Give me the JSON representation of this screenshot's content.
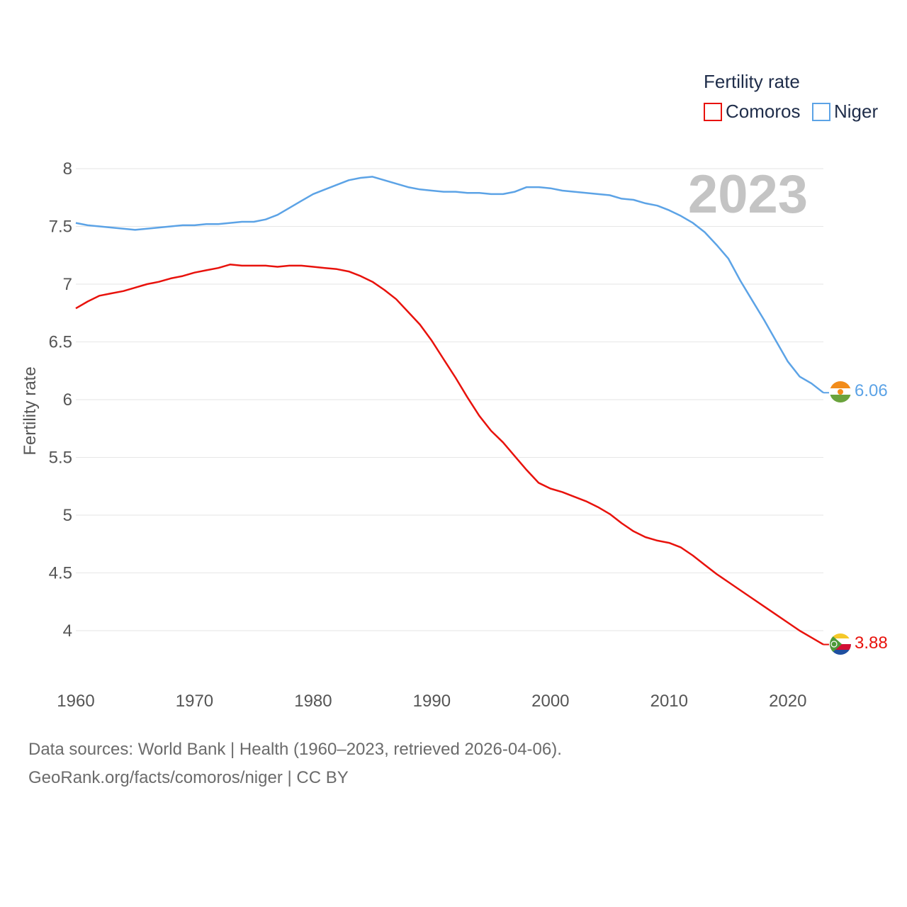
{
  "chart_data": {
    "type": "line",
    "title": "",
    "xlabel": "",
    "ylabel": "Fertility rate",
    "xlim": [
      1960,
      2023
    ],
    "ylim": [
      3.75,
      8.2
    ],
    "yticks": [
      4,
      4.5,
      5,
      5.5,
      6,
      6.5,
      7,
      7.5,
      8
    ],
    "ytick_labels": [
      "4",
      "4.5",
      "5",
      "5.5",
      "6",
      "6.5",
      "7",
      "7.5",
      "8"
    ],
    "xticks": [
      1960,
      1970,
      1980,
      1990,
      2000,
      2010,
      2020
    ],
    "xtick_labels": [
      "1960",
      "1970",
      "1980",
      "1990",
      "2000",
      "2010",
      "2020"
    ],
    "grid": true,
    "year_label": "2023",
    "legend": {
      "title": "Fertility rate",
      "position": "top-right",
      "entries": [
        "Comoros",
        "Niger"
      ]
    },
    "x": [
      1960,
      1961,
      1962,
      1963,
      1964,
      1965,
      1966,
      1967,
      1968,
      1969,
      1970,
      1971,
      1972,
      1973,
      1974,
      1975,
      1976,
      1977,
      1978,
      1979,
      1980,
      1981,
      1982,
      1983,
      1984,
      1985,
      1986,
      1987,
      1988,
      1989,
      1990,
      1991,
      1992,
      1993,
      1994,
      1995,
      1996,
      1997,
      1998,
      1999,
      2000,
      2001,
      2002,
      2003,
      2004,
      2005,
      2006,
      2007,
      2008,
      2009,
      2010,
      2011,
      2012,
      2013,
      2014,
      2015,
      2016,
      2017,
      2018,
      2019,
      2020,
      2021,
      2022,
      2023
    ],
    "series": [
      {
        "name": "Comoros",
        "color": "#e8120c",
        "end_label": "3.88",
        "values": [
          6.79,
          6.85,
          6.9,
          6.92,
          6.94,
          6.97,
          7.0,
          7.02,
          7.05,
          7.07,
          7.1,
          7.12,
          7.14,
          7.17,
          7.16,
          7.16,
          7.16,
          7.15,
          7.16,
          7.16,
          7.15,
          7.14,
          7.13,
          7.11,
          7.07,
          7.02,
          6.95,
          6.87,
          6.76,
          6.65,
          6.51,
          6.35,
          6.19,
          6.02,
          5.86,
          5.73,
          5.63,
          5.51,
          5.39,
          5.28,
          5.23,
          5.2,
          5.16,
          5.12,
          5.07,
          5.01,
          4.93,
          4.86,
          4.81,
          4.78,
          4.76,
          4.72,
          4.65,
          4.57,
          4.49,
          4.42,
          4.35,
          4.28,
          4.21,
          4.14,
          4.07,
          4.0,
          3.94,
          3.88
        ]
      },
      {
        "name": "Niger",
        "color": "#5ca3e6",
        "end_label": "6.06",
        "values": [
          7.53,
          7.51,
          7.5,
          7.49,
          7.48,
          7.47,
          7.48,
          7.49,
          7.5,
          7.51,
          7.51,
          7.52,
          7.52,
          7.53,
          7.54,
          7.54,
          7.56,
          7.6,
          7.66,
          7.72,
          7.78,
          7.82,
          7.86,
          7.9,
          7.92,
          7.93,
          7.9,
          7.87,
          7.84,
          7.82,
          7.81,
          7.8,
          7.8,
          7.79,
          7.79,
          7.78,
          7.78,
          7.8,
          7.84,
          7.84,
          7.83,
          7.81,
          7.8,
          7.79,
          7.78,
          7.77,
          7.74,
          7.73,
          7.7,
          7.68,
          7.64,
          7.59,
          7.53,
          7.45,
          7.34,
          7.22,
          7.03,
          6.86,
          6.69,
          6.51,
          6.33,
          6.2,
          6.14,
          6.06
        ]
      }
    ]
  },
  "footer": {
    "line1": "Data sources: World Bank | Health (1960–2023, retrieved 2026-04-06).",
    "line2": "GeoRank.org/facts/comoros/niger | CC BY"
  }
}
